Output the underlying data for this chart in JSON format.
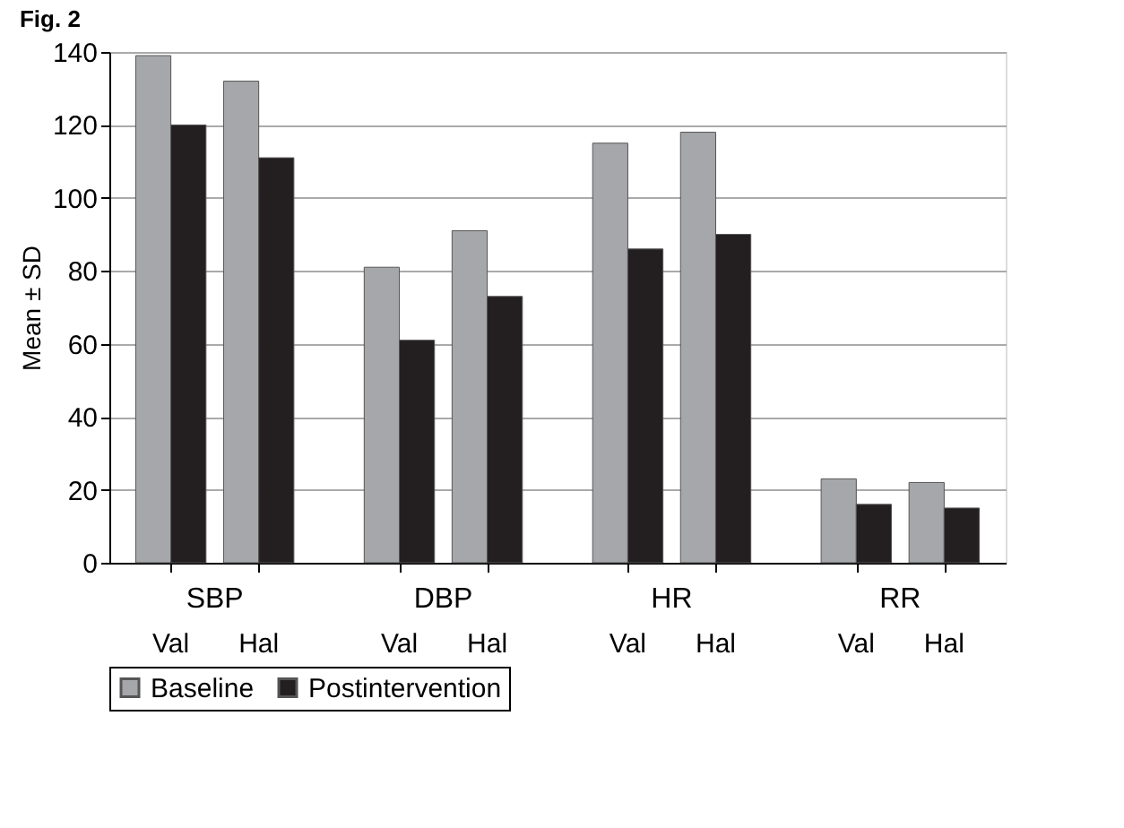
{
  "chart_data": {
    "type": "bar",
    "title": "Fig. 2",
    "ylabel": "Mean ± SD",
    "categories": [
      "Val",
      "Hal",
      "Val",
      "Hal",
      "Val",
      "Hal",
      "Val",
      "Hal"
    ],
    "annotations": [
      "SBP",
      "DBP",
      "HR",
      "RR"
    ],
    "series": [
      {
        "name": "Baseline",
        "color": "#a6a7aa",
        "values": [
          139,
          132,
          81,
          91,
          115,
          118,
          23,
          22
        ]
      },
      {
        "name": "Postintervention",
        "color": "#231f20",
        "values": [
          120,
          111,
          61,
          73,
          86,
          90,
          16,
          15
        ]
      }
    ],
    "ylim": [
      0,
      140
    ],
    "yticks": [
      0,
      20,
      40,
      60,
      80,
      100,
      120,
      140
    ],
    "grid": "y",
    "legend": "bottom"
  }
}
